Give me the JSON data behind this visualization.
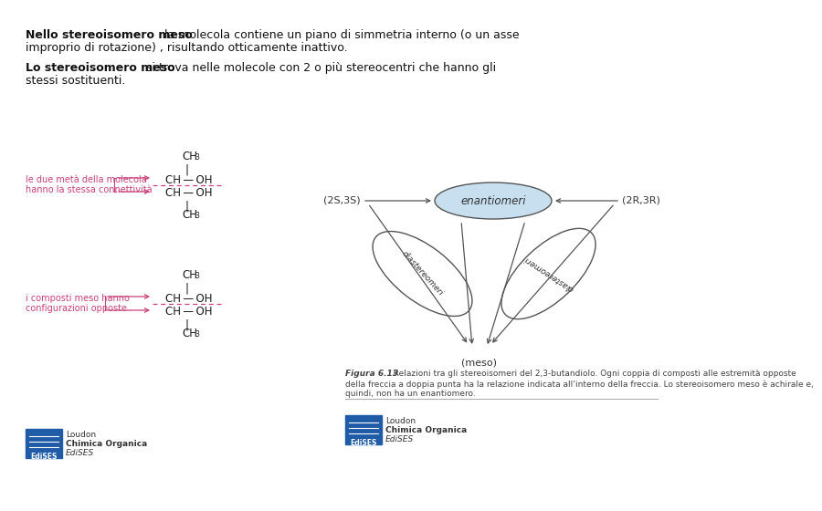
{
  "background_color": "#ffffff",
  "text_color": "#111111",
  "magenta_color": "#c9417a",
  "diagram_ellipse_fill_top": "#c8dff0",
  "para1_bold": "Nello stereoisomero meso",
  "para1_rest": " la molecola contiene un piano di simmetria interno (o un asse",
  "para1_line2": "improprio di rotazione) , risultando otticamente inattivo.",
  "para2_bold": "Lo stereoisomero meso",
  "para2_rest": " si trova nelle molecole con 2 o più stereocentri che hanno gli",
  "para2_line2": "stessi sostituenti.",
  "mol1_label": "le due metà della molecola\nhanno la stessa connettività",
  "mol2_label": "i composti meso hanno\nconfigurazioni opposte",
  "label_2S3S": "(2S,3S)",
  "label_2R3R": "(2R,3R)",
  "label_enantiomeri": "enantiomeri",
  "label_diastereomeri": "diastereomeri",
  "label_meso": "(meso)",
  "caption_bold": "Figura 6.13",
  "caption_rest": "  Relazioni tra gli stereoisomeri del 2,3-butandiolo. Ogni coppia di composti alle estremità opposte\ndella freccia a doppia punta ha la relazione indicata all’interno della freccia. Lo stereoisomero meso è achirale e,\nquindi, non ha un enantiomero.",
  "logo_text1": "Loudon",
  "logo_text2": "Chimica Organica",
  "logo_text3": "EdiSES",
  "edises_color": "#1f5ba6"
}
